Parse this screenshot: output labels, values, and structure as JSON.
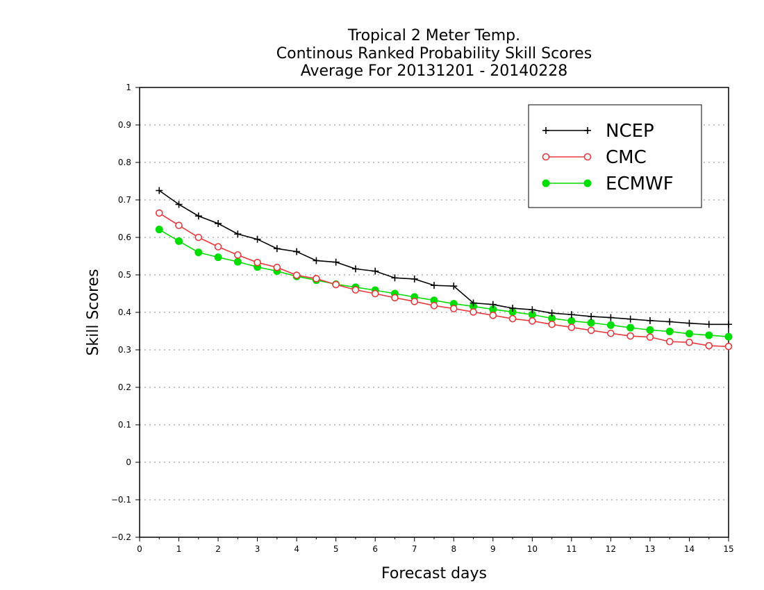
{
  "chart_data": {
    "type": "line",
    "title_lines": [
      "Tropical 2 Meter Temp.",
      "Continous Ranked Probability Skill Scores",
      "Average For 20131201 - 20140228"
    ],
    "xlabel": "Forecast days",
    "ylabel": "Skill Scores",
    "xlim": [
      0,
      15
    ],
    "ylim": [
      -0.2,
      1
    ],
    "xticks": [
      "0",
      "1",
      "2",
      "3",
      "4",
      "5",
      "6",
      "7",
      "8",
      "9",
      "10",
      "11",
      "12",
      "13",
      "14",
      "15"
    ],
    "yticks": [
      "−0.2",
      "−0.1",
      "0",
      "0.1",
      "0.2",
      "0.3",
      "0.4",
      "0.5",
      "0.6",
      "0.7",
      "0.8",
      "0.9",
      "1"
    ],
    "ytick_values": [
      -0.2,
      -0.1,
      0,
      0.1,
      0.2,
      0.3,
      0.4,
      0.5,
      0.6,
      0.7,
      0.8,
      0.9,
      1
    ],
    "grid": "horizontal dotted",
    "legend_position": "top-right",
    "x": [
      0.5,
      1,
      1.5,
      2,
      2.5,
      3,
      3.5,
      4,
      4.5,
      5,
      5.5,
      6,
      6.5,
      7,
      7.5,
      8,
      8.5,
      9,
      9.5,
      10,
      10.5,
      11,
      11.5,
      12,
      12.5,
      13,
      13.5,
      14,
      14.5,
      15
    ],
    "series": [
      {
        "name": "NCEP",
        "color": "#000000",
        "marker": "plus",
        "values": [
          0.725,
          0.688,
          0.657,
          0.637,
          0.609,
          0.595,
          0.57,
          0.562,
          0.538,
          0.534,
          0.516,
          0.51,
          0.492,
          0.489,
          0.472,
          0.47,
          0.425,
          0.421,
          0.411,
          0.407,
          0.398,
          0.394,
          0.389,
          0.386,
          0.382,
          0.378,
          0.375,
          0.371,
          0.368,
          0.368
        ]
      },
      {
        "name": "CMC",
        "color": "#e8393c",
        "marker": "open-circle",
        "values": [
          0.665,
          0.632,
          0.6,
          0.575,
          0.553,
          0.533,
          0.52,
          0.499,
          0.49,
          0.474,
          0.46,
          0.45,
          0.439,
          0.429,
          0.418,
          0.41,
          0.401,
          0.392,
          0.383,
          0.377,
          0.368,
          0.36,
          0.352,
          0.344,
          0.337,
          0.334,
          0.322,
          0.32,
          0.311,
          0.309
        ]
      },
      {
        "name": "ECMWF",
        "color": "#00dd00",
        "marker": "filled-circle",
        "values": [
          0.621,
          0.59,
          0.56,
          0.547,
          0.535,
          0.521,
          0.51,
          0.496,
          0.486,
          0.475,
          0.467,
          0.459,
          0.45,
          0.441,
          0.432,
          0.423,
          0.416,
          0.408,
          0.401,
          0.394,
          0.384,
          0.377,
          0.372,
          0.366,
          0.359,
          0.353,
          0.349,
          0.343,
          0.339,
          0.335
        ]
      }
    ]
  }
}
